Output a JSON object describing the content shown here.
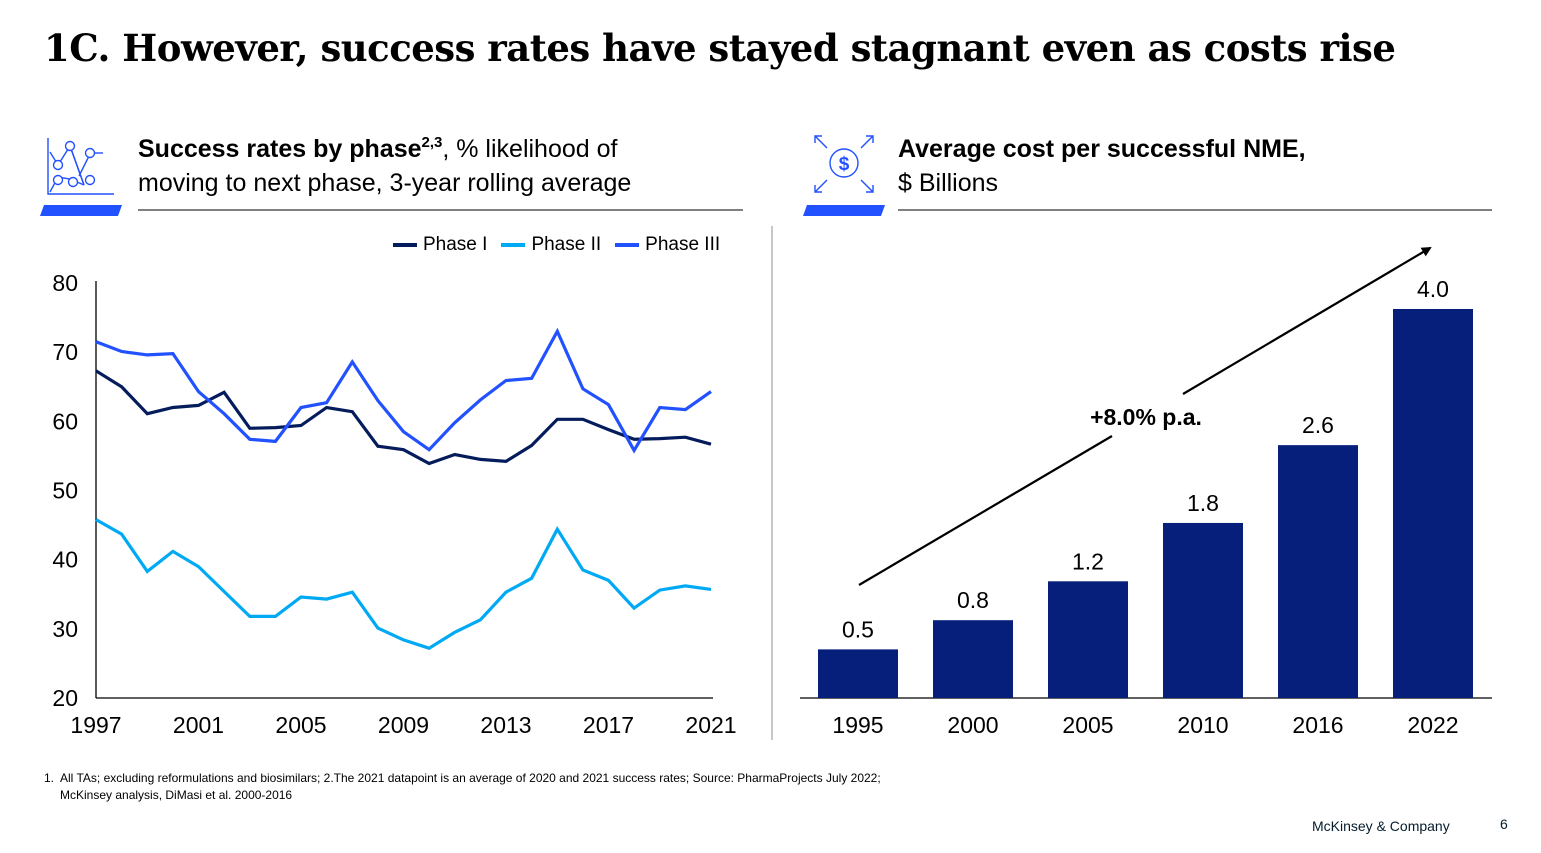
{
  "slide": {
    "title": "1C. However, success rates have stayed stagnant even as costs rise",
    "brand": "McKinsey & Company",
    "page_number": "6",
    "footnote": {
      "number": "1.",
      "line1": "All TAs; excluding reformulations and biosimilars; 2.The 2021 datapoint is an average of 2020 and 2021 success rates; Source: PharmaProjects July 2022;",
      "line2": "McKinsey analysis, DiMasi et al. 2000-2016"
    }
  },
  "left_panel": {
    "icon": "line-chart-icon",
    "title_bold": "Success rates by phase",
    "title_sup": "2,3",
    "title_rest": ", % likelihood of",
    "subtitle": "moving to next phase, 3-year rolling average"
  },
  "right_panel": {
    "icon": "dollar-expand-icon",
    "title_bold": "Average cost per successful NME,",
    "subtitle": "$ Billions"
  },
  "colors": {
    "accent": "#2251FF",
    "phase1": "#051C5C",
    "phase2": "#00A9F4",
    "phase3": "#2251FF",
    "bar": "#051F7A"
  },
  "chart_data": [
    {
      "type": "line",
      "title": "Success rates by phase, % likelihood of moving to next phase, 3-year rolling average",
      "xlabel": "",
      "ylabel": "",
      "ylim": [
        20,
        80
      ],
      "yticks": [
        "80",
        "70",
        "60",
        "50",
        "40",
        "30",
        "20"
      ],
      "ytick_values": [
        80,
        70,
        60,
        50,
        40,
        30,
        20
      ],
      "xlim": [
        1997,
        2021
      ],
      "xticks": [
        "1997",
        "2001",
        "2005",
        "2009",
        "2013",
        "2017",
        "2021"
      ],
      "xtick_values": [
        1997,
        2001,
        2005,
        2009,
        2013,
        2017,
        2021
      ],
      "grid": false,
      "legend": "top-right",
      "x": [
        1997,
        1998,
        1999,
        2000,
        2001,
        2002,
        2003,
        2004,
        2005,
        2006,
        2007,
        2008,
        2009,
        2010,
        2011,
        2012,
        2013,
        2014,
        2015,
        2016,
        2017,
        2018,
        2019,
        2020,
        2021
      ],
      "series": [
        {
          "name": "Phase I",
          "color": "#051C5C",
          "values": [
            67.3,
            65.0,
            61.1,
            62.0,
            62.3,
            64.2,
            59.0,
            59.1,
            59.4,
            62.0,
            61.4,
            56.4,
            55.9,
            53.9,
            55.2,
            54.5,
            54.2,
            56.5,
            60.3,
            60.3,
            58.8,
            57.4,
            57.5,
            57.7,
            56.7
          ]
        },
        {
          "name": "Phase II",
          "color": "#00A9F4",
          "values": [
            45.8,
            43.7,
            38.3,
            41.2,
            39.0,
            35.4,
            31.8,
            31.8,
            34.6,
            34.3,
            35.3,
            30.1,
            28.4,
            27.2,
            29.5,
            31.3,
            35.3,
            37.3,
            44.4,
            38.5,
            37.0,
            33.0,
            35.6,
            36.2,
            35.7
          ]
        },
        {
          "name": "Phase III",
          "color": "#2251FF",
          "values": [
            71.5,
            70.1,
            69.6,
            69.8,
            64.3,
            61.1,
            57.4,
            57.1,
            62.0,
            62.7,
            68.6,
            63.0,
            58.5,
            55.9,
            59.8,
            63.1,
            65.9,
            66.2,
            73.0,
            64.7,
            62.4,
            55.8,
            62.0,
            61.7,
            64.3
          ]
        }
      ]
    },
    {
      "type": "bar",
      "title": "Average cost per successful NME, $ Billions",
      "xlabel": "",
      "ylabel": "$ Billions",
      "ylim": [
        0,
        4.0
      ],
      "grid": false,
      "categories": [
        "1995",
        "2000",
        "2005",
        "2010",
        "2016",
        "2022"
      ],
      "values": [
        0.5,
        0.8,
        1.2,
        1.8,
        2.6,
        4.0
      ],
      "data_labels": [
        "0.5",
        "0.8",
        "1.2",
        "1.8",
        "2.6",
        "4.0"
      ],
      "annotation": "+8.0% p.a."
    }
  ]
}
